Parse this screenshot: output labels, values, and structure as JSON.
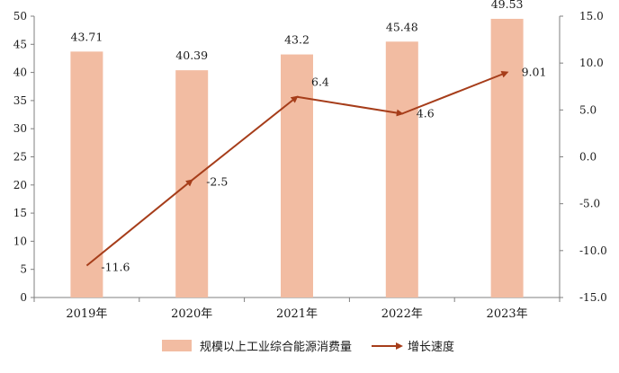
{
  "chart_data": {
    "type": "bar",
    "categories": [
      "2019年",
      "2020年",
      "2021年",
      "2022年",
      "2023年"
    ],
    "series": [
      {
        "name": "规模以上工业综合能源消费量",
        "type": "bar",
        "axis": "left",
        "values": [
          43.71,
          40.39,
          43.2,
          45.48,
          49.53
        ],
        "labels": [
          "43.71",
          "40.39",
          "43.2",
          "45.48",
          "49.53"
        ],
        "color": "#f2bca2"
      },
      {
        "name": "增长速度",
        "type": "line",
        "axis": "right",
        "values": [
          -11.6,
          -2.5,
          6.4,
          4.6,
          9.01
        ],
        "labels": [
          "-11.6",
          "-2.5",
          "6.4",
          "4.6",
          "9.01"
        ],
        "color": "#a63d1a"
      }
    ],
    "y_left": {
      "range": [
        0,
        50
      ],
      "ticks": [
        "0",
        "5",
        "10",
        "15",
        "20",
        "25",
        "30",
        "35",
        "40",
        "45",
        "50"
      ]
    },
    "y_right": {
      "range": [
        -15,
        15
      ],
      "ticks": [
        "-15.0",
        "-10.0",
        "-5.0",
        "0.0",
        "5.0",
        "10.0",
        "15.0"
      ]
    },
    "grid": false,
    "legend_position": "bottom-center"
  }
}
